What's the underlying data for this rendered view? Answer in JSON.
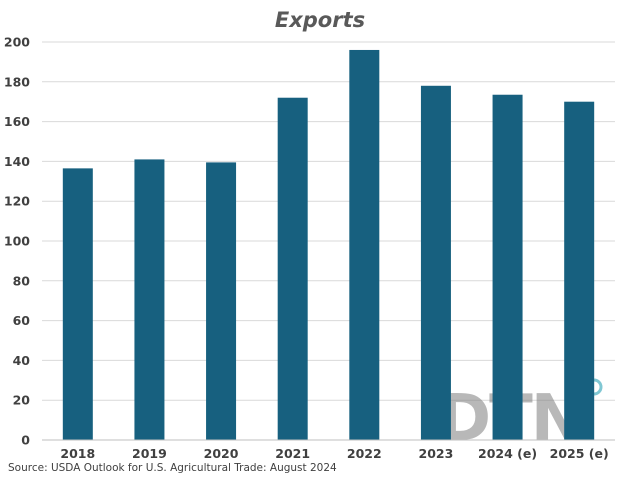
{
  "chart_data": {
    "type": "bar",
    "title": "Exports",
    "categories": [
      "2018",
      "2019",
      "2020",
      "2021",
      "2022",
      "2023",
      "2024 (e)",
      "2025 (e)"
    ],
    "values": [
      136.5,
      141,
      139.5,
      172,
      196,
      178,
      173.5,
      170
    ],
    "ylim": [
      0,
      200
    ],
    "yticks": [
      0,
      20,
      40,
      60,
      80,
      100,
      120,
      140,
      160,
      180,
      200
    ],
    "grid": true,
    "legend": "none",
    "bar_color": "#17607f",
    "grid_color": "#d9d9d9"
  },
  "source": "Source: USDA Outlook for U.S. Agricultural Trade: August 2024",
  "logo": {
    "text": "DTN",
    "color": "#7f7f7f",
    "accent_color": "#1a9bb0"
  }
}
